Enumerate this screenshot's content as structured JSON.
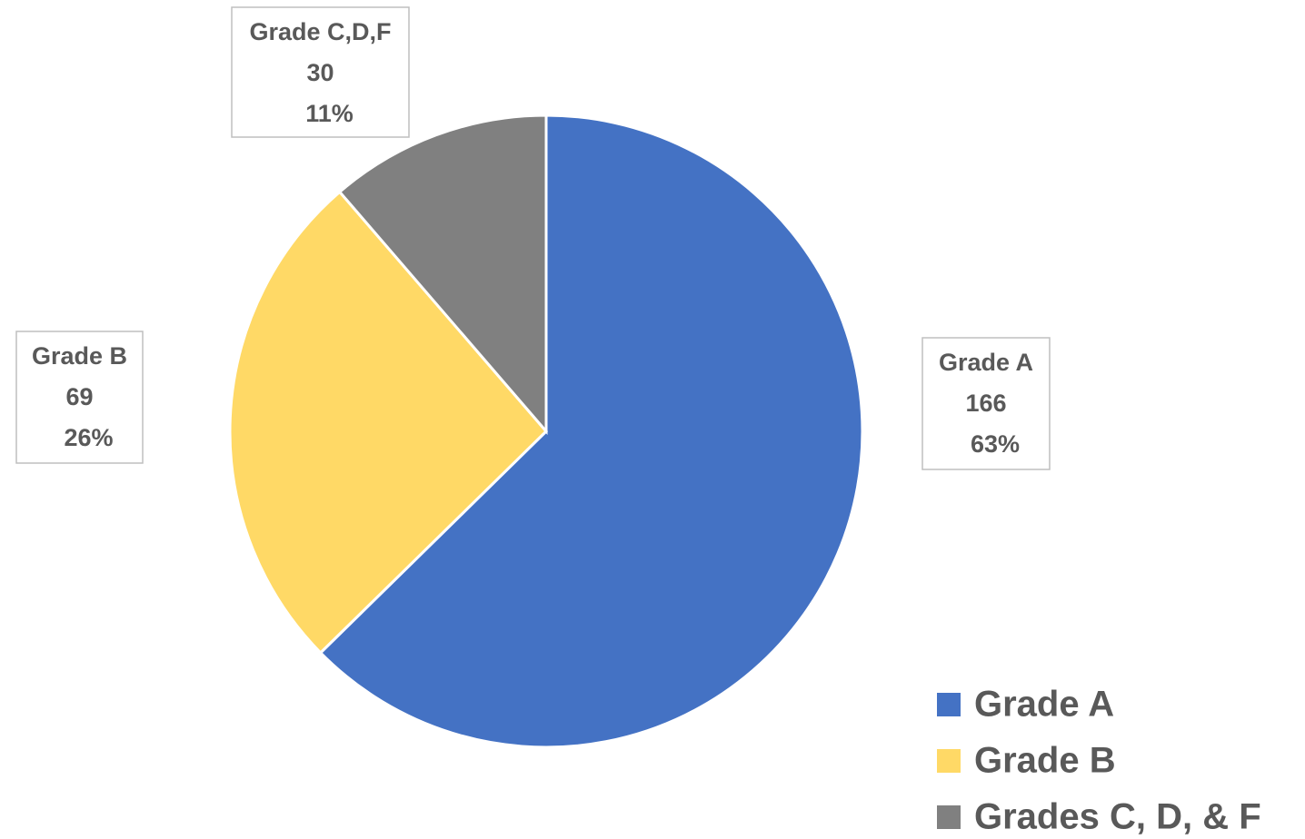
{
  "chart_data": {
    "type": "pie",
    "categories": [
      "Grade A",
      "Grade B",
      "Grades C, D, & F"
    ],
    "values": [
      166,
      69,
      30
    ],
    "label_names": [
      "Grade A",
      "Grade B",
      "Grade C,D,F"
    ],
    "percent_labels": [
      "63%",
      "26%",
      "11%"
    ],
    "colors": [
      "#4472c4",
      "#ffd966",
      "#808080"
    ],
    "legend": "bottom-right"
  }
}
